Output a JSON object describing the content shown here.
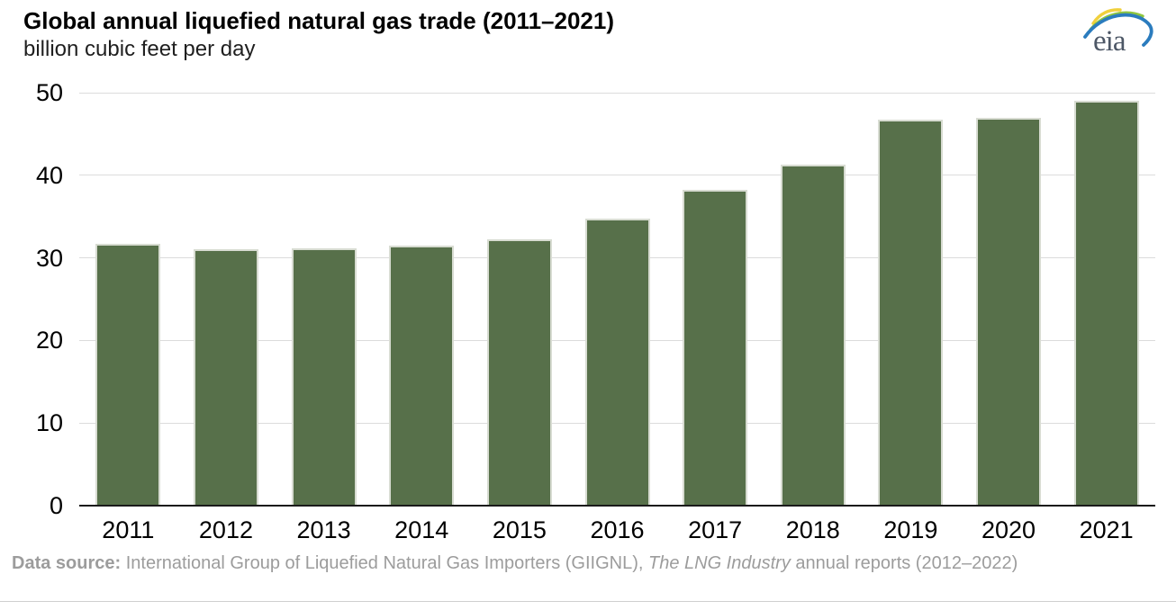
{
  "header": {
    "title": "Global annual liquefied natural gas trade (2011–2021)",
    "subtitle": "billion cubic feet per day",
    "logo_text": "eia"
  },
  "chart_data": {
    "type": "bar",
    "title": "Global annual liquefied natural gas trade (2011–2021)",
    "subtitle": "billion cubic feet per day",
    "categories": [
      "2011",
      "2012",
      "2013",
      "2014",
      "2015",
      "2016",
      "2017",
      "2018",
      "2019",
      "2020",
      "2021"
    ],
    "values": [
      31.7,
      31.0,
      31.2,
      31.5,
      32.3,
      34.7,
      38.2,
      41.3,
      46.7,
      46.9,
      49.0
    ],
    "xlabel": "",
    "ylabel": "billion cubic feet per day",
    "ylim": [
      0,
      50
    ],
    "yticks": [
      0,
      10,
      20,
      30,
      40,
      50
    ],
    "grid": true,
    "legend": "none",
    "bar_color": "#57704a"
  },
  "footer": {
    "label_bold": "Data source: ",
    "text_before_italic": "International Group of Liquefied Natural Gas Importers (GIIGNL), ",
    "italic_text": "The LNG Industry",
    "text_after_italic": " annual reports (2012–2022)"
  },
  "colors": {
    "bar": "#57704a",
    "bar_edge": "#d8dcd2",
    "gridline": "#dcdcdc",
    "axis_line": "#1a1a1a",
    "footer_text": "#9c9c9c",
    "logo_text": "#4d5766",
    "logo_blue": "#2b7cbe",
    "logo_green": "#8fc640",
    "logo_yellow": "#f0d03c"
  }
}
